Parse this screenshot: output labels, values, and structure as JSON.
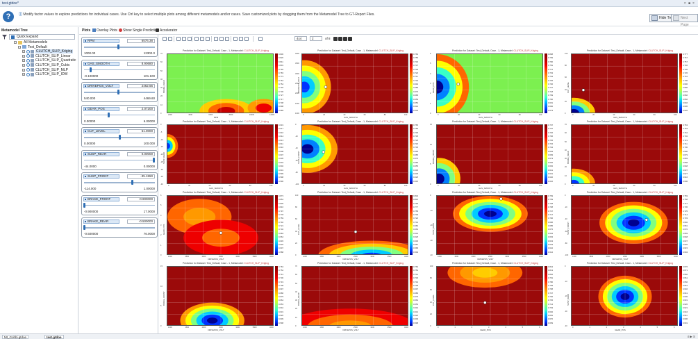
{
  "window": {
    "title": "test.gtdoe*",
    "controls": [
      "□",
      "■",
      "×"
    ]
  },
  "info": {
    "text": "Modify factor values to explore predictions for individual cases. Use Ctrl key to select multiple plots among different metamodels and/or cases. Save customized plots by dragging them from the Metamodel Tree to GT-Report Files.",
    "hide_tree": "Hide Tree",
    "next_page": "Next Page"
  },
  "tree": {
    "header": "Metamodel Tree",
    "quick_expand": "Quick Expand",
    "root": "All Metamodels",
    "group": "Test_Default",
    "items": [
      "CLUTCH_SLIP_Kriging",
      "CLUTCH_SLIP_Linear",
      "CLUTCH_SLIP_Quadratic",
      "CLUTCH_SLIP_Cubic",
      "CLUTCH_SLIP_MLP",
      "CLUTCH_SLIP_IDW"
    ]
  },
  "tabs": {
    "plots": "Plots",
    "overlay": "Overlay Plots",
    "single": "Show Single Prediction",
    "accelerator": "Accelerator"
  },
  "sliders": [
    {
      "name": "RPM",
      "value": "6576.38",
      "min": "1000.00",
      "max": "12302.0",
      "pos": 0.49
    },
    {
      "name": "GAS_SMOOTH",
      "value": "8.90680",
      "min": "-0.100000",
      "max": "101.100",
      "pos": 0.09
    },
    {
      "name": "DRIVEPOS_VOLT",
      "value": "2462.56",
      "min": "540.000",
      "max": "4469.60",
      "pos": 0.49
    },
    {
      "name": "GEAR_POS",
      "value": "2.07200",
      "min": "0.00000",
      "max": "6.00000",
      "pos": 0.35
    },
    {
      "name": "CUT_LEVEL",
      "value": "51.0000",
      "min": "0.00000",
      "max": "100.000",
      "pos": 0.51
    },
    {
      "name": "SUSP_REAR",
      "value": "0.00000",
      "min": "-44.0000",
      "max": "0.00000",
      "pos": 1.0
    },
    {
      "name": "SUSP_FRONT",
      "value": "-35.1550",
      "min": "-114.000",
      "max": "1.00000",
      "pos": 0.69
    },
    {
      "name": "BRAKE_FRONT",
      "value": "-0.900000",
      "min": "-0.900000",
      "max": "17.0000",
      "pos": 0.0
    },
    {
      "name": "BRAKE_REAR",
      "value": "-0.500000",
      "min": "-0.500000",
      "max": "76.0000",
      "pos": 0.0
    }
  ],
  "toolbar": {
    "layout": "4x4",
    "page": "2",
    "of": "of 8"
  },
  "plot_title_prefix": "Prediction for Dataset: Test_Default, Case - 1, Metamodel: ",
  "plot_title_model": "CLUTCH_SLIP_Kriging",
  "plots": [
    {
      "x": "RPM",
      "y": "BRAKE_REAR",
      "bg": "green",
      "xt": [
        "2000",
        "4000",
        "6000",
        "8000",
        "10000",
        "12000"
      ],
      "yt": [
        "70",
        "60",
        "50",
        "40",
        "30",
        "20",
        "10",
        "0"
      ],
      "cb": [
        "0.830",
        "0.820",
        "0.811",
        "0.801",
        "0.792",
        "0.783",
        "0.773",
        "0.764",
        "0.754",
        "0.745",
        "0.736",
        "0.727",
        "0.717",
        "0.708",
        "0.698",
        "0.689"
      ]
    },
    {
      "x": "GAS_SMOOTH",
      "y": "DRIVEPOS_VOLT",
      "bg": "red",
      "xt": [
        "0",
        "20",
        "40",
        "60",
        "80",
        "100"
      ],
      "yt": [
        "4000",
        "3500",
        "3000",
        "2500",
        "2000",
        "1500",
        "1000"
      ],
      "cb": [
        "0.763",
        "0.755",
        "0.746",
        "0.737",
        "0.729",
        "0.720",
        "0.711",
        "0.702",
        "0.694",
        "0.685",
        "0.676",
        "0.668",
        "0.659",
        "0.650",
        "0.642",
        "0.633"
      ]
    },
    {
      "x": "GAS_SMOOTH",
      "y": "GEAR_POS",
      "bg": "green",
      "xt": [
        "0",
        "20",
        "40",
        "60",
        "80",
        "100"
      ],
      "yt": [
        "6",
        "5",
        "4",
        "3",
        "2",
        "1",
        "0"
      ],
      "cb": [
        "0.808",
        "0.799",
        "0.790",
        "0.781",
        "0.772",
        "0.763",
        "0.754",
        "0.745",
        "0.736",
        "0.727",
        "0.718",
        "0.709",
        "0.700",
        "0.691",
        "0.682",
        "0.673"
      ]
    },
    {
      "x": "GAS_SMOOTH",
      "y": "CUT_LEVEL",
      "bg": "red",
      "xt": [
        "0",
        "20",
        "40",
        "60",
        "80",
        "100"
      ],
      "yt": [
        "100",
        "80",
        "60",
        "40",
        "20",
        "0"
      ],
      "cb": [
        "0.777",
        "0.767",
        "0.757",
        "0.746",
        "0.736",
        "0.726",
        "0.716",
        "0.706",
        "0.696",
        "0.686",
        "0.676",
        "0.666",
        "0.656",
        "0.646",
        "0.636",
        "0.626"
      ]
    },
    {
      "x": "GAS_SMOOTH",
      "y": "SUSP_REAR",
      "bg": "red",
      "xt": [
        "0",
        "20",
        "40",
        "60",
        "80",
        "100"
      ],
      "yt": [
        "0",
        "-5",
        "-10",
        "-15",
        "-20",
        "-25",
        "-30",
        "-35",
        "-40"
      ],
      "cb": [
        "0.619",
        "0.617",
        "0.616",
        "0.614",
        "0.613",
        "0.611",
        "0.610",
        "0.608",
        "0.607",
        "0.605",
        "0.604",
        "0.602",
        "0.601",
        "0.599",
        "0.598",
        "0.596"
      ]
    },
    {
      "x": "GAS_SMOOTH",
      "y": "SUSP_FRONT",
      "bg": "red",
      "xt": [
        "0",
        "20",
        "40",
        "60",
        "80",
        "100"
      ],
      "yt": [
        "0",
        "-20",
        "-40",
        "-60",
        "-80",
        "-100"
      ],
      "cb": [
        "0.765",
        "0.755",
        "0.745",
        "0.735",
        "0.725",
        "0.715",
        "0.705",
        "0.695",
        "0.685",
        "0.675",
        "0.665",
        "0.655",
        "0.645",
        "0.635",
        "0.625",
        "0.615"
      ]
    },
    {
      "x": "GAS_SMOOTH",
      "y": "BRAKE_FRONT",
      "bg": "red",
      "xt": [
        "0",
        "20",
        "40",
        "60",
        "80",
        "100"
      ],
      "yt": [
        "15",
        "10",
        "5",
        "0"
      ],
      "cb": [
        "0.767",
        "0.757",
        "0.746",
        "0.736",
        "0.725",
        "0.715",
        "0.704",
        "0.694",
        "0.683",
        "0.673",
        "0.662",
        "0.652",
        "0.641",
        "0.631",
        "0.620",
        "0.610"
      ]
    },
    {
      "x": "GAS_SMOOTH",
      "y": "BRAKE_REAR",
      "bg": "red",
      "xt": [
        "0",
        "20",
        "40",
        "60",
        "80",
        "100"
      ],
      "yt": [
        "70",
        "60",
        "50",
        "40",
        "30",
        "20",
        "10",
        "0"
      ],
      "cb": [
        "0.763",
        "0.753",
        "0.742",
        "0.732",
        "0.721",
        "0.711",
        "0.700",
        "0.690",
        "0.679",
        "0.669",
        "0.658",
        "0.648",
        "0.637",
        "0.627",
        "0.616",
        "0.606"
      ]
    },
    {
      "x": "DRIVEPOS_VOLT",
      "y": "GEAR_POS",
      "bg": "red",
      "xt": [
        "1000",
        "1500",
        "2000",
        "2500",
        "3000",
        "3500",
        "4000"
      ],
      "yt": [
        "6",
        "5",
        "4",
        "3",
        "2",
        "1",
        "0"
      ],
      "cb": [
        "0.873",
        "0.854",
        "0.835",
        "0.816",
        "0.797",
        "0.778",
        "0.759",
        "0.740",
        "0.721",
        "0.702",
        "0.683",
        "0.664",
        "0.645",
        "0.626",
        "0.607",
        "0.588"
      ]
    },
    {
      "x": "DRIVEPOS_VOLT",
      "y": "CUT_LEVEL",
      "bg": "red",
      "xt": [
        "1000",
        "1500",
        "2000",
        "2500",
        "3000",
        "3500",
        "4000"
      ],
      "yt": [
        "100",
        "80",
        "60",
        "40",
        "20",
        "0"
      ],
      "cb": [
        "0.834",
        "0.815",
        "0.796",
        "0.777",
        "0.758",
        "0.739",
        "0.720",
        "0.701",
        "0.682",
        "0.663",
        "0.644",
        "0.625",
        "0.606",
        "0.587",
        "0.568",
        "0.549"
      ]
    },
    {
      "x": "DRIVEPOS_VOLT",
      "y": "SUSP_REAR",
      "bg": "red",
      "xt": [
        "1000",
        "1500",
        "2000",
        "2500",
        "3000",
        "3500",
        "4000"
      ],
      "yt": [
        "0",
        "-10",
        "-20",
        "-30",
        "-40"
      ],
      "cb": [
        "0.769",
        "0.759",
        "0.748",
        "0.738",
        "0.727",
        "0.717",
        "0.706",
        "0.696",
        "0.685",
        "0.675",
        "0.664",
        "0.654",
        "0.643",
        "0.633",
        "0.622",
        "0.612"
      ]
    },
    {
      "x": "DRIVEPOS_VOLT",
      "y": "SUSP_FRONT",
      "bg": "red",
      "xt": [
        "1000",
        "1500",
        "2000",
        "2500",
        "3000",
        "3500",
        "4000"
      ],
      "yt": [
        "0",
        "-20",
        "-40",
        "-60",
        "-80",
        "-100"
      ],
      "cb": [
        "0.769",
        "0.758",
        "0.747",
        "0.736",
        "0.725",
        "0.714",
        "0.703",
        "0.692",
        "0.681",
        "0.670",
        "0.659",
        "0.648",
        "0.637",
        "0.626",
        "0.615",
        "0.604"
      ]
    },
    {
      "x": "DRIVEPOS_VOLT",
      "y": "BRAKE_FRONT",
      "bg": "red",
      "xt": [
        "1000",
        "1500",
        "2000",
        "2500",
        "3000",
        "3500",
        "4000"
      ],
      "yt": [
        "15",
        "10",
        "5",
        "0"
      ],
      "cb": [
        "0.763",
        "0.752",
        "0.741",
        "0.730",
        "0.719",
        "0.708",
        "0.697",
        "0.686",
        "0.675",
        "0.664",
        "0.653",
        "0.642",
        "0.631",
        "0.620",
        "0.609",
        "0.598"
      ]
    },
    {
      "x": "DRIVEPOS_VOLT",
      "y": "BRAKE_REAR",
      "bg": "red",
      "xt": [
        "1000",
        "1500",
        "2000",
        "2500",
        "3000",
        "3500",
        "4000"
      ],
      "yt": [
        "70",
        "60",
        "50",
        "40",
        "30",
        "20",
        "10",
        "0"
      ],
      "cb": [
        "0.763",
        "0.752",
        "0.741",
        "0.730",
        "0.719",
        "0.708",
        "0.697",
        "0.686",
        "0.675",
        "0.664",
        "0.653",
        "0.642",
        "0.631",
        "0.620",
        "0.609",
        "0.598"
      ]
    },
    {
      "x": "GEAR_POS",
      "y": "CUT_LEVEL",
      "bg": "red",
      "xt": [
        "0",
        "1",
        "2",
        "3",
        "4",
        "5",
        "6"
      ],
      "yt": [
        "100",
        "80",
        "60",
        "40",
        "20",
        "0"
      ],
      "cb": [
        "0.824",
        "0.813",
        "0.802",
        "0.791",
        "0.780",
        "0.769",
        "0.758",
        "0.747",
        "0.736",
        "0.725",
        "0.714",
        "0.703",
        "0.692",
        "0.681",
        "0.670",
        "0.659"
      ]
    },
    {
      "x": "GEAR_POS",
      "y": "SUSP_REAR",
      "bg": "red",
      "xt": [
        "0",
        "1",
        "2",
        "3",
        "4",
        "5",
        "6"
      ],
      "yt": [
        "0",
        "-10",
        "-20",
        "-30",
        "-40"
      ],
      "cb": [
        "0.676",
        "0.671",
        "0.666",
        "0.661",
        "0.656",
        "0.651",
        "0.646",
        "0.641",
        "0.636",
        "0.631",
        "0.626",
        "0.621",
        "0.616",
        "0.611",
        "0.606",
        "0.601"
      ]
    }
  ],
  "statusbar": {
    "tab1": "Mt_Gohbi.gtdoe",
    "tab2": "test.gtdoe",
    "right": "4 ▶ S"
  }
}
